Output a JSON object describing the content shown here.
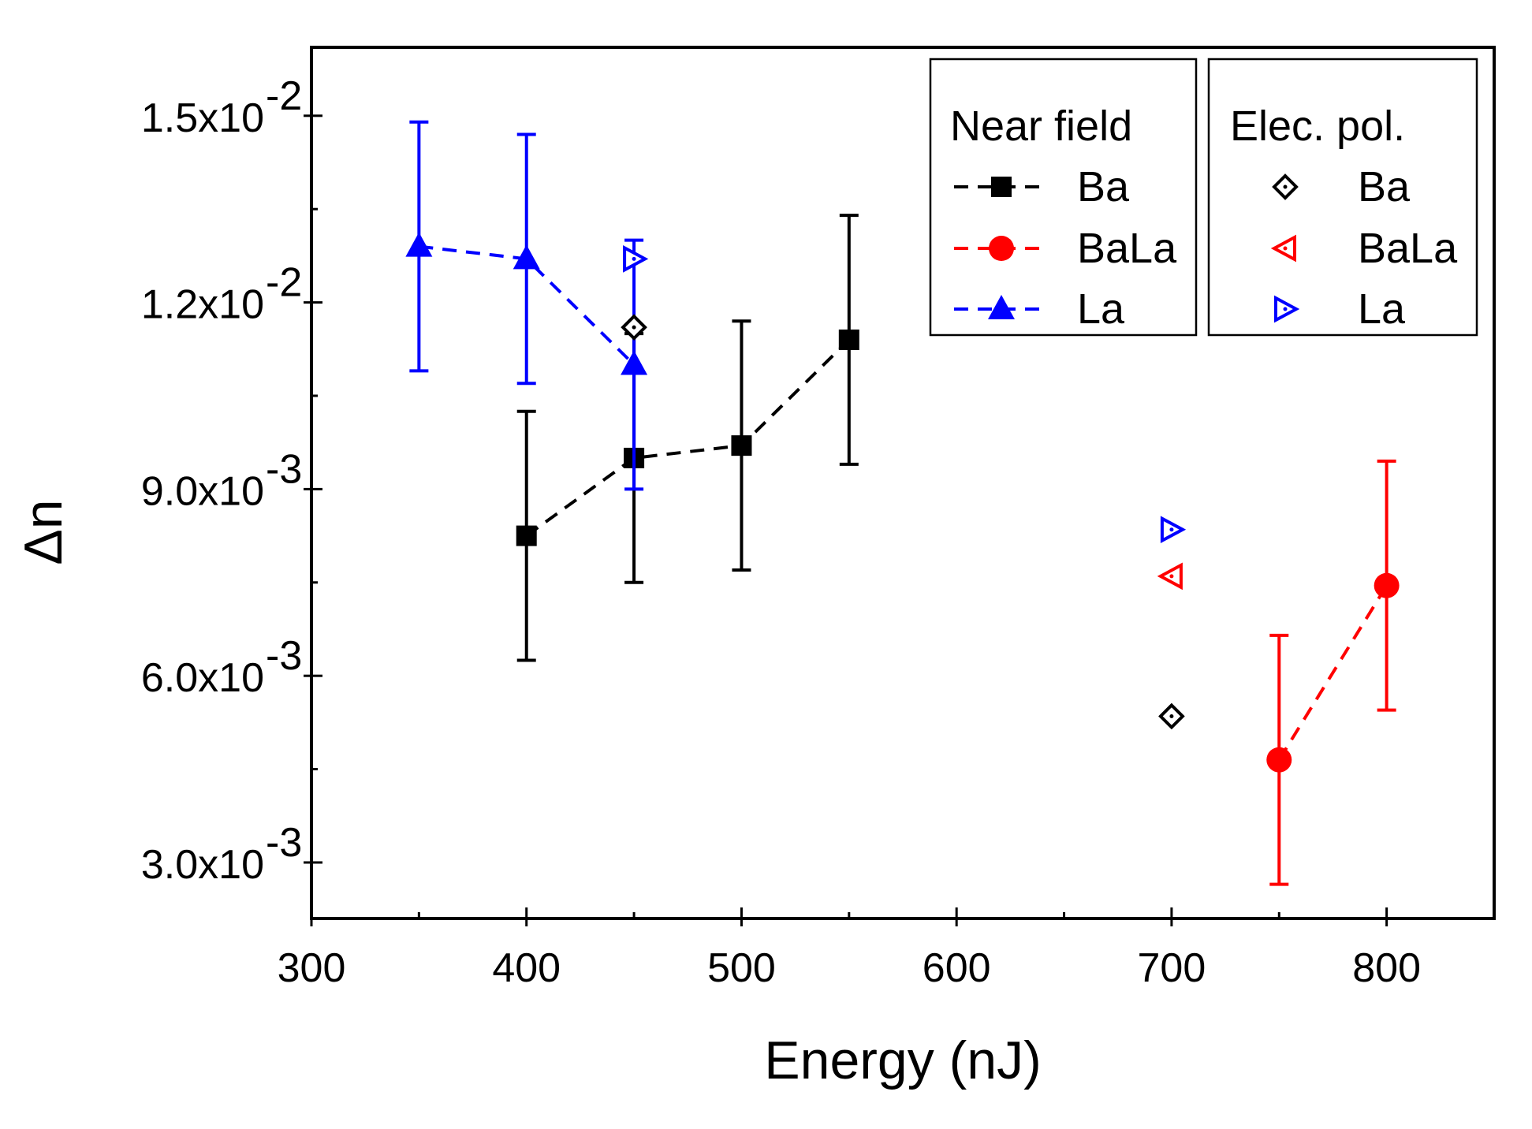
{
  "chart_data": {
    "type": "scatter",
    "xlabel": "Energy (nJ)",
    "ylabel": "Δn",
    "xlim": [
      300,
      850
    ],
    "ylim": [
      0.0021,
      0.0161
    ],
    "x_ticks": [
      300,
      400,
      500,
      600,
      700,
      800
    ],
    "x_tick_labels": [
      "300",
      "400",
      "500",
      "600",
      "700",
      "800"
    ],
    "y_ticks": [
      0.003,
      0.006,
      0.009,
      0.012,
      0.015
    ],
    "y_tick_labels": [
      {
        "mantissa": "3.0x10",
        "exp": "-3"
      },
      {
        "mantissa": "6.0x10",
        "exp": "-3"
      },
      {
        "mantissa": "9.0x10",
        "exp": "-3"
      },
      {
        "mantissa": "1.2x10",
        "exp": "-2"
      },
      {
        "mantissa": "1.5x10",
        "exp": "-2"
      }
    ],
    "grid": false,
    "legend_groups": [
      {
        "title": "Near field",
        "placement": "top-right",
        "entries": [
          "Ba",
          "BaLa",
          "La"
        ]
      },
      {
        "title": "Elec. pol.",
        "placement": "top-right",
        "entries": [
          "Ba",
          "BaLa",
          "La"
        ]
      }
    ],
    "series": [
      {
        "group": "Near field",
        "name": "Ba",
        "color": "#000000",
        "marker": "square-filled",
        "line": "dashed",
        "x": [
          400,
          450,
          500,
          550
        ],
        "y": [
          0.00825,
          0.0095,
          0.0097,
          0.0114
        ],
        "yerr": [
          0.002,
          0.002,
          0.002,
          0.002
        ]
      },
      {
        "group": "Near field",
        "name": "BaLa",
        "color": "#ff0000",
        "marker": "circle-filled",
        "line": "dashed",
        "x": [
          750,
          800
        ],
        "y": [
          0.00465,
          0.00745
        ],
        "yerr": [
          0.002,
          0.002
        ]
      },
      {
        "group": "Near field",
        "name": "La",
        "color": "#0000ff",
        "marker": "triangle-up-filled",
        "line": "dashed",
        "x": [
          350,
          400,
          450
        ],
        "y": [
          0.0129,
          0.0127,
          0.011
        ],
        "yerr": [
          0.002,
          0.002,
          0.002
        ]
      },
      {
        "group": "Elec. pol.",
        "name": "Ba",
        "color": "#000000",
        "marker": "diamond-open",
        "line": "none",
        "x": [
          450,
          700
        ],
        "y": [
          0.0116,
          0.00535
        ]
      },
      {
        "group": "Elec. pol.",
        "name": "BaLa",
        "color": "#ff0000",
        "marker": "triangle-left-open",
        "line": "none",
        "x": [
          700
        ],
        "y": [
          0.0076
        ]
      },
      {
        "group": "Elec. pol.",
        "name": "La",
        "color": "#0000ff",
        "marker": "triangle-right-open",
        "line": "none",
        "x": [
          450,
          700
        ],
        "y": [
          0.0127,
          0.00835
        ]
      }
    ]
  }
}
